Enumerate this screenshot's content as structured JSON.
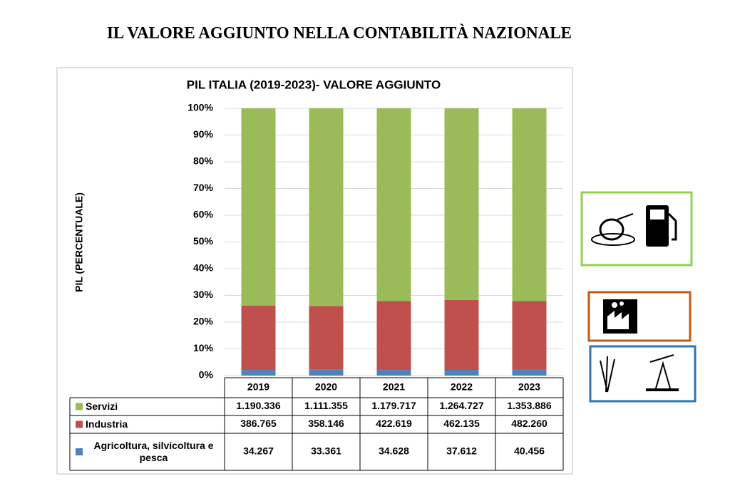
{
  "page_title": "IL VALORE AGGIUNTO NELLA CONTABILITÀ NAZIONALE",
  "chart_data": {
    "type": "bar",
    "stack": "percent",
    "title": "PIL ITALIA (2019-2023)- VALORE AGGIUNTO",
    "y_label": "PIL (PERCENTUALE)",
    "categories": [
      "2019",
      "2020",
      "2021",
      "2022",
      "2023"
    ],
    "series": [
      {
        "name": "Agricoltura, silvicoltura e pesca",
        "color": "#4f81bd",
        "values": [
          34267,
          33361,
          34628,
          37612,
          40456
        ],
        "value_labels": [
          "34.267",
          "33.361",
          "34.628",
          "37.612",
          "40.456"
        ]
      },
      {
        "name": "Industria",
        "color": "#c0504d",
        "values": [
          386765,
          358146,
          422619,
          462135,
          482260
        ],
        "value_labels": [
          "386.765",
          "358.146",
          "422.619",
          "462.135",
          "482.260"
        ]
      },
      {
        "name": "Servizi",
        "color": "#9bbb59",
        "values": [
          1190336,
          1111355,
          1179717,
          1264727,
          1353886
        ],
        "value_labels": [
          "1.190.336",
          "1.111.355",
          "1.179.717",
          "1.264.727",
          "1.353.886"
        ]
      }
    ],
    "ylim": [
      0,
      100
    ],
    "yticks": [
      {
        "value": 0,
        "label": "0%"
      },
      {
        "value": 10,
        "label": "10%"
      },
      {
        "value": 20,
        "label": "20%"
      },
      {
        "value": 30,
        "label": "30%"
      },
      {
        "value": 40,
        "label": "40%"
      },
      {
        "value": 50,
        "label": "50%"
      },
      {
        "value": 60,
        "label": "60%"
      },
      {
        "value": 70,
        "label": "70%"
      },
      {
        "value": 80,
        "label": "80%"
      },
      {
        "value": 90,
        "label": "90%"
      },
      {
        "value": 100,
        "label": "100%"
      }
    ],
    "grid": true
  }
}
